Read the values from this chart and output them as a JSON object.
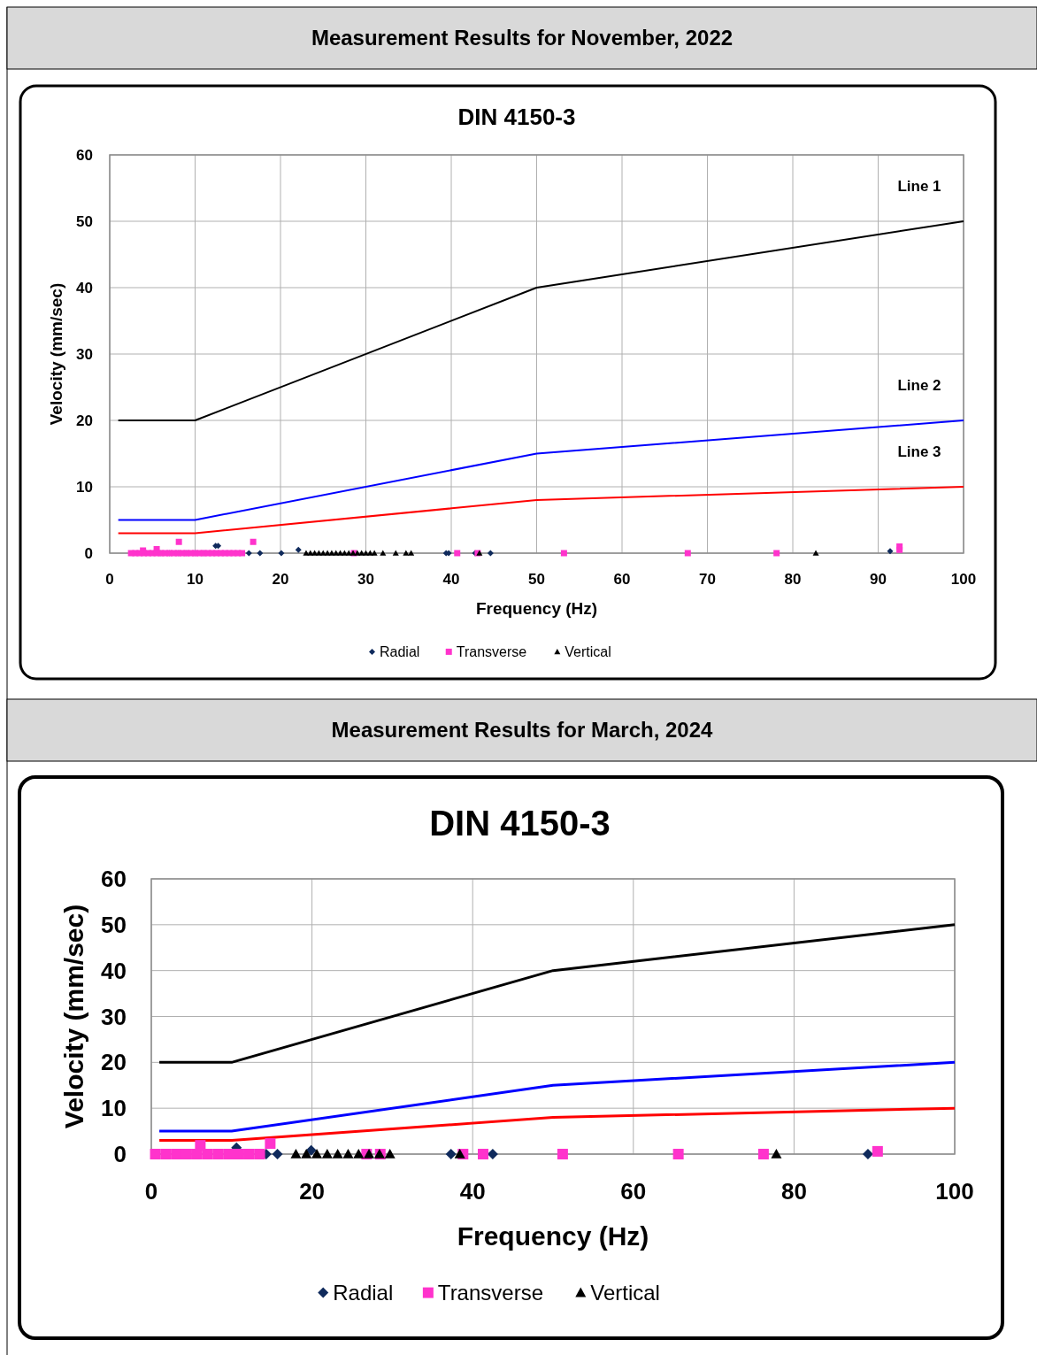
{
  "chart_data": [
    {
      "type": "scatter",
      "title": "Measurement Results for November, 2022",
      "subtitle": "DIN 4150-3",
      "xlabel": "Frequency (Hz)",
      "ylabel": "Velocity (mm/sec)",
      "xlim": [
        0,
        100
      ],
      "ylim": [
        0,
        60
      ],
      "xticks": [
        0,
        10,
        20,
        30,
        40,
        50,
        60,
        70,
        80,
        90,
        100
      ],
      "yticks": [
        0,
        10,
        20,
        30,
        40,
        50,
        60
      ],
      "grid": true,
      "legend": "bottom",
      "annotations": [
        "Line 1",
        "Line 2",
        "Line 3"
      ],
      "series": [
        {
          "type": "line",
          "color": "#000000",
          "marker": "none",
          "line_style": "solid",
          "x": [
            1,
            10,
            50,
            100
          ],
          "values": [
            20,
            20,
            40,
            50
          ]
        },
        {
          "type": "line",
          "color": "#0000ff",
          "marker": "none",
          "line_style": "solid",
          "x": [
            1,
            10,
            50,
            100
          ],
          "values": [
            5,
            5,
            15,
            20
          ]
        },
        {
          "type": "line",
          "color": "#ff0000",
          "marker": "none",
          "line_style": "solid",
          "x": [
            1,
            10,
            50,
            100
          ],
          "values": [
            3,
            3,
            8,
            10
          ]
        },
        {
          "name": "Radial",
          "color": "#0f2a5c",
          "marker": "diamond",
          "x": [
            6,
            7,
            8,
            9,
            10,
            11,
            12.4,
            12.7,
            16.3,
            17.6,
            20.1,
            22.1,
            39.4,
            39.7,
            42.8,
            44.6,
            91.4
          ],
          "values": [
            0,
            0,
            0,
            0,
            0,
            0,
            1.1,
            1.1,
            0,
            0,
            0,
            0.5,
            0,
            0,
            0,
            0,
            0.3
          ]
        },
        {
          "name": "Transverse",
          "color": "#ff33cc",
          "marker": "square",
          "x": [
            2.5,
            3,
            3.5,
            4,
            4.5,
            5,
            5.5,
            6,
            6.5,
            7,
            7.5,
            8,
            8.5,
            9,
            9.5,
            10,
            10.5,
            11,
            11.5,
            12,
            12.5,
            13,
            13.5,
            14,
            14.5,
            15,
            15.5,
            3.9,
            5.5,
            8.1,
            16.8,
            28.6,
            40.7,
            43.1,
            53.2,
            67.7,
            78.1,
            92.5,
            92.5
          ],
          "values": [
            0,
            0,
            0,
            0,
            0,
            0,
            0,
            0,
            0,
            0,
            0,
            0,
            0,
            0,
            0,
            0,
            0,
            0,
            0,
            0,
            0,
            0,
            0,
            0,
            0,
            0,
            0,
            0.4,
            0.6,
            1.7,
            1.7,
            0,
            0,
            0,
            0,
            0,
            0,
            0.5,
            1
          ]
        },
        {
          "name": "Vertical",
          "color": "#000000",
          "marker": "triangle",
          "x": [
            23,
            23.5,
            24,
            24.5,
            25,
            25.5,
            26,
            26.5,
            27,
            27.5,
            28,
            28.5,
            29,
            29.5,
            30,
            30.5,
            31,
            32,
            33.5,
            34.7,
            35.3,
            43.3,
            82.7
          ],
          "values": [
            0,
            0,
            0,
            0,
            0,
            0,
            0,
            0,
            0,
            0,
            0,
            0,
            0,
            0,
            0,
            0,
            0,
            0,
            0,
            0,
            0,
            0,
            0
          ]
        }
      ]
    },
    {
      "type": "scatter",
      "title": "Measurement Results for March, 2024",
      "subtitle": "DIN 4150-3",
      "xlabel": "Frequency (Hz)",
      "ylabel": "Velocity (mm/sec)",
      "xlim": [
        0,
        100
      ],
      "ylim": [
        0,
        60
      ],
      "xticks": [
        0,
        20,
        40,
        60,
        80,
        100
      ],
      "yticks": [
        0,
        10,
        20,
        30,
        40,
        50,
        60
      ],
      "grid": true,
      "legend": "bottom",
      "series": [
        {
          "type": "line",
          "color": "#000000",
          "marker": "none",
          "line_style": "solid",
          "x": [
            1,
            10,
            50,
            100
          ],
          "values": [
            20,
            20,
            40,
            50
          ]
        },
        {
          "type": "line",
          "color": "#0000ff",
          "marker": "none",
          "line_style": "solid",
          "x": [
            1,
            10,
            50,
            100
          ],
          "values": [
            5,
            5,
            15,
            20
          ]
        },
        {
          "type": "line",
          "color": "#ff0000",
          "marker": "none",
          "line_style": "solid",
          "x": [
            1,
            10,
            50,
            100
          ],
          "values": [
            3,
            3,
            8,
            10
          ]
        },
        {
          "name": "Radial",
          "color": "#0f2a5c",
          "marker": "diamond",
          "x": [
            10.6,
            14.3,
            15.7,
            19.9,
            37.3,
            42.5,
            89.2
          ],
          "values": [
            1.4,
            0,
            0,
            0.8,
            0,
            0,
            0
          ]
        },
        {
          "name": "Transverse",
          "color": "#ff33cc",
          "marker": "square",
          "x": [
            0.5,
            1.8,
            3.1,
            4.4,
            5.7,
            7,
            8.3,
            9.6,
            10.9,
            12.2,
            13.5,
            6.1,
            14.8,
            26.8,
            28.5,
            38.8,
            41.3,
            51.2,
            65.6,
            76.2,
            90.4
          ],
          "values": [
            0,
            0,
            0,
            0,
            0,
            0,
            0,
            0,
            0,
            0,
            0,
            1.9,
            2.3,
            0,
            0,
            0,
            0,
            0,
            0,
            0,
            0.6
          ]
        },
        {
          "name": "Vertical",
          "color": "#000000",
          "marker": "triangle",
          "x": [
            18,
            19.3,
            20.6,
            21.9,
            23.2,
            24.5,
            25.8,
            27.1,
            28.4,
            29.7,
            38.4,
            77.8
          ],
          "values": [
            0,
            0,
            0,
            0,
            0,
            0,
            0,
            0,
            0,
            0,
            0,
            0
          ]
        }
      ]
    }
  ]
}
